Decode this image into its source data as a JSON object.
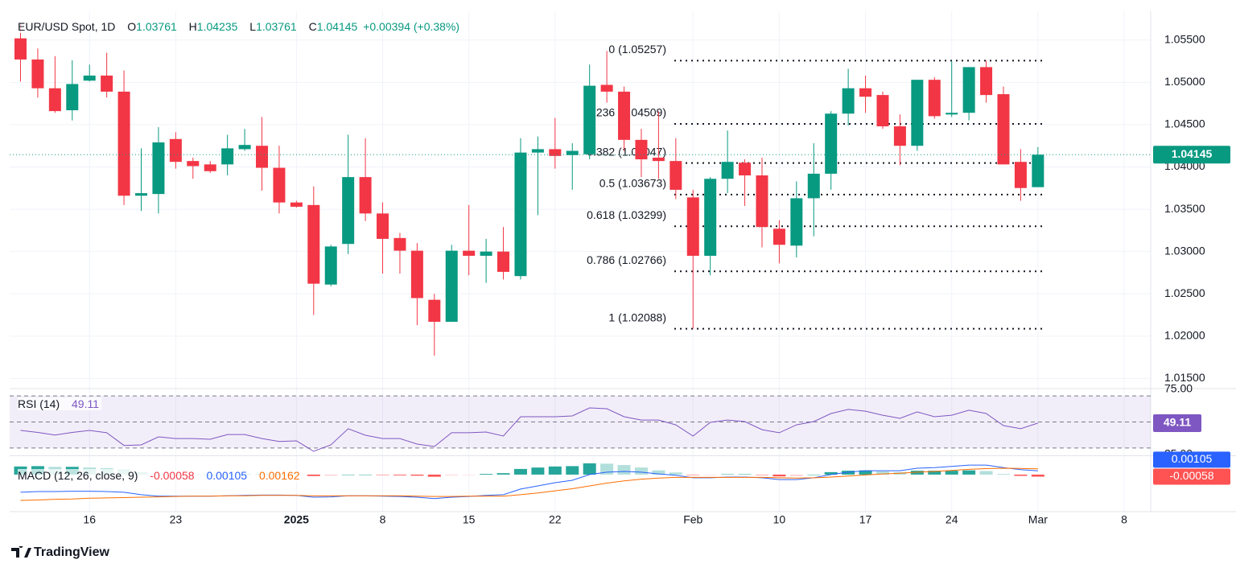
{
  "chart_data": {
    "type": "candlestick",
    "symbol": "EUR/USD Spot, 1D",
    "ohlc_prefixes": [
      "O",
      "H",
      "L",
      "C"
    ],
    "change": "+0.00394 (+0.38%)",
    "brand": "TradingView",
    "up_color": "#089981",
    "down_color": "#f23645",
    "categories": [
      null,
      null,
      null,
      null,
      null,
      null,
      null,
      null,
      null,
      null,
      null,
      null,
      null,
      null,
      null,
      null,
      null,
      null,
      null,
      null,
      null,
      null,
      null,
      null,
      null,
      null,
      null,
      null,
      null,
      null,
      null,
      null,
      null,
      null,
      null,
      null,
      null,
      null,
      null,
      null,
      null,
      null,
      null,
      null,
      null,
      null,
      null,
      null,
      null,
      null,
      null,
      null,
      null,
      null,
      null,
      null,
      null,
      null,
      null,
      null
    ],
    "open": [
      1.0552,
      1.0527,
      1.0493,
      1.0467,
      1.0502,
      1.0508,
      1.0489,
      1.0366,
      1.0368,
      1.0433,
      1.0407,
      1.0403,
      1.0403,
      1.0421,
      1.0425,
      1.0399,
      1.0358,
      1.0355,
      1.0261,
      1.0309,
      1.0388,
      1.0345,
      1.0316,
      1.0301,
      1.0243,
      1.0217,
      1.0301,
      1.0295,
      1.03,
      1.0271,
      1.0417,
      1.0421,
      1.0414,
      1.0415,
      1.0497,
      1.0489,
      1.0432,
      1.0411,
      1.0407,
      1.0364,
      1.0295,
      1.0386,
      1.0405,
      1.039,
      1.0327,
      1.0307,
      1.0363,
      1.0392,
      1.0463,
      1.0493,
      1.0485,
      1.0448,
      1.0425,
      1.0503,
      1.0462,
      1.0464,
      1.0518,
      1.0486,
      1.0406,
      1.03761
    ],
    "high": [
      1.0569,
      1.054,
      1.0531,
      1.0526,
      1.0521,
      1.0535,
      1.0514,
      1.0422,
      1.0447,
      1.0441,
      1.0411,
      1.0407,
      1.0438,
      1.0445,
      1.0459,
      1.0425,
      1.036,
      1.0377,
      1.0308,
      1.0438,
      1.0434,
      1.0358,
      1.0322,
      1.031,
      1.025,
      1.0308,
      1.0355,
      1.0315,
      1.0329,
      1.0434,
      1.0436,
      1.0458,
      1.0428,
      1.0521,
      1.0537,
      1.0495,
      1.0445,
      1.0466,
      1.0434,
      1.0373,
      1.0388,
      1.0443,
      1.0409,
      1.0411,
      1.0337,
      1.0383,
      1.0428,
      1.0466,
      1.0516,
      1.0508,
      1.0489,
      1.0462,
      1.0503,
      1.0506,
      1.0525,
      1.0518,
      1.05257,
      1.0495,
      1.0421,
      1.04235
    ],
    "low": [
      1.0501,
      1.0482,
      1.0464,
      1.0455,
      1.0501,
      1.0482,
      1.0355,
      1.0348,
      1.0345,
      1.0398,
      1.0386,
      1.0393,
      1.039,
      1.0419,
      1.0372,
      1.0345,
      1.0352,
      1.0225,
      1.0259,
      1.0297,
      1.0336,
      1.0274,
      1.0274,
      1.0213,
      1.0177,
      1.0217,
      1.0272,
      1.0263,
      1.0267,
      1.0267,
      1.0343,
      1.0398,
      1.0373,
      1.0409,
      1.0476,
      1.0419,
      1.0388,
      1.0386,
      1.0362,
      1.02088,
      1.0272,
      1.0369,
      1.0354,
      1.0305,
      1.0286,
      1.0293,
      1.0318,
      1.0373,
      1.0449,
      1.0464,
      1.0445,
      1.0402,
      1.0419,
      1.0457,
      1.0459,
      1.0455,
      1.0476,
      1.0403,
      1.036,
      1.03761
    ],
    "close": [
      1.0527,
      1.0493,
      1.0466,
      1.0498,
      1.0508,
      1.0489,
      1.0366,
      1.0369,
      1.0429,
      1.0406,
      1.0401,
      1.0395,
      1.0422,
      1.0426,
      1.0399,
      1.0358,
      1.0353,
      1.0262,
      1.0306,
      1.0388,
      1.0345,
      1.0315,
      1.0301,
      1.0245,
      1.0217,
      1.0301,
      1.0295,
      1.03,
      1.0276,
      1.0417,
      1.0421,
      1.0413,
      1.0419,
      1.0496,
      1.0489,
      1.0432,
      1.0409,
      1.0407,
      1.0373,
      1.0295,
      1.0386,
      1.0406,
      1.039,
      1.0329,
      1.0308,
      1.0363,
      1.0392,
      1.0463,
      1.0493,
      1.0483,
      1.0448,
      1.0425,
      1.0503,
      1.046,
      1.0464,
      1.0518,
      1.0485,
      1.0403,
      1.03751,
      1.04145
    ],
    "xlim": [
      -0.63,
      65.54
    ],
    "xticks": [
      {
        "value": 4,
        "label": "16"
      },
      {
        "value": 9,
        "label": "23"
      },
      {
        "value": 16,
        "label": "2025"
      },
      {
        "value": 21,
        "label": "8"
      },
      {
        "value": 26,
        "label": "15"
      },
      {
        "value": 31,
        "label": "22"
      },
      {
        "value": 39,
        "label": "Feb"
      },
      {
        "value": 44,
        "label": "10"
      },
      {
        "value": 49,
        "label": "17"
      },
      {
        "value": 54,
        "label": "24"
      },
      {
        "value": 59,
        "label": "Mar"
      },
      {
        "value": 64,
        "label": "8"
      }
    ],
    "ylim": [
      1.0139,
      1.0584
    ],
    "yticks": [
      {
        "value": 1.015,
        "label": "1.01500"
      },
      {
        "value": 1.02,
        "label": "1.02000"
      },
      {
        "value": 1.025,
        "label": "1.02500"
      },
      {
        "value": 1.03,
        "label": "1.03000"
      },
      {
        "value": 1.035,
        "label": "1.03500"
      },
      {
        "value": 1.04,
        "label": "1.04000"
      },
      {
        "value": 1.045,
        "label": "1.04500"
      },
      {
        "value": 1.05,
        "label": "1.05000"
      },
      {
        "value": 1.055,
        "label": "1.05500"
      }
    ],
    "grid": true,
    "fib": {
      "color": "#131722",
      "levels": [
        {
          "value": 1.05257,
          "label": "0 (1.05257)"
        },
        {
          "value": 1.04509,
          "label": "0.236 (1.04509)"
        },
        {
          "value": 1.04047,
          "label": "0.382 (1.04047)"
        },
        {
          "value": 1.03673,
          "label": "0.5 (1.03673)"
        },
        {
          "value": 1.03299,
          "label": "0.618 (1.03299)"
        },
        {
          "value": 1.02766,
          "label": "0.786 (1.02766)"
        },
        {
          "value": 1.02088,
          "label": "1 (1.02088)"
        }
      ]
    },
    "rsi": {
      "name": "RSI (14)",
      "color": "#7e57c2",
      "ylim": [
        25,
        75
      ],
      "yticks": [
        {
          "value": 75,
          "label": "75.00"
        },
        {
          "value": 25,
          "label": "25.00"
        }
      ],
      "bands": [
        70,
        50,
        30
      ],
      "values": [
        43.5,
        42,
        40,
        42,
        43.5,
        41.7,
        32,
        32.4,
        38.6,
        37.3,
        37.3,
        36.7,
        40.4,
        40.4,
        37.3,
        35,
        35.5,
        27.5,
        32.4,
        44.8,
        39.8,
        37.3,
        37.3,
        33,
        31.2,
        41.7,
        41.7,
        42.3,
        39.2,
        54,
        54,
        54,
        54.6,
        60.8,
        60.2,
        54,
        51.5,
        51.5,
        47.8,
        39.2,
        49.7,
        51.5,
        50.3,
        44.1,
        41.7,
        47.8,
        50.3,
        56.5,
        59.6,
        58.3,
        55.2,
        52.8,
        57.7,
        54,
        55.2,
        59,
        56.5,
        47.2,
        44.8,
        49.11
      ]
    },
    "macd": {
      "name": "MACD (12, 26, close, 9)",
      "ylim": [
        -0.0105,
        0.005
      ],
      "histogram_colors": [
        "#26a69a",
        "#b2dfdb",
        "#ffcdd2",
        "#ff5252"
      ],
      "histogram": [
        0.0023,
        0.0024,
        0.0022,
        0.0022,
        0.002,
        0.0018,
        0.0015,
        0.0007,
        0.0002,
        0.0001,
        0,
        0,
        0,
        0.0001,
        0.0001,
        0.0001,
        0,
        -0.0004,
        -0.0003,
        0,
        0,
        -0.0001,
        -0.0002,
        -0.0003,
        -0.0006,
        -0.0002,
        -0.0001,
        0.0002,
        0.0004,
        0.0016,
        0.002,
        0.0023,
        0.0024,
        0.0032,
        0.0031,
        0.0027,
        0.002,
        0.0012,
        0.0006,
        -0.0001,
        -0.0001,
        0.0001,
        0.0001,
        -0.0001,
        -0.0005,
        -0.0004,
        0,
        0.0007,
        0.0011,
        0.0012,
        0.0009,
        0.0007,
        0.0011,
        0.0011,
        0.0011,
        0.0012,
        0.001,
        0.0002,
        -0.00035,
        -0.00058
      ],
      "macd": {
        "color": "#2962ff",
        "values": [
          -0.005,
          -0.0048,
          -0.0048,
          -0.0047,
          -0.0047,
          -0.0048,
          -0.005,
          -0.0057,
          -0.0061,
          -0.0061,
          -0.0061,
          -0.0061,
          -0.006,
          -0.0059,
          -0.0058,
          -0.0058,
          -0.0059,
          -0.0064,
          -0.0063,
          -0.006,
          -0.006,
          -0.0061,
          -0.0062,
          -0.0064,
          -0.0068,
          -0.0064,
          -0.0062,
          -0.0059,
          -0.0057,
          -0.0041,
          -0.0032,
          -0.0023,
          -0.0016,
          0,
          0.0007,
          0.0009,
          0.0007,
          0.0002,
          -0.0002,
          -0.0009,
          -0.0009,
          -0.0007,
          -0.0007,
          -0.0009,
          -0.0014,
          -0.0014,
          -0.0009,
          0,
          0.0007,
          0.0011,
          0.0011,
          0.0011,
          0.0018,
          0.002,
          0.0023,
          0.0027,
          0.0027,
          0.002,
          0.0014,
          0.00105
        ]
      },
      "signal": {
        "color": "#ff6d00",
        "values": [
          -0.0073,
          -0.0072,
          -0.007,
          -0.0069,
          -0.0067,
          -0.0066,
          -0.0065,
          -0.0064,
          -0.0063,
          -0.0062,
          -0.0061,
          -0.0061,
          -0.006,
          -0.006,
          -0.0059,
          -0.0059,
          -0.0059,
          -0.006,
          -0.006,
          -0.006,
          -0.006,
          -0.006,
          -0.006,
          -0.0061,
          -0.0062,
          -0.0062,
          -0.0061,
          -0.0061,
          -0.0061,
          -0.0057,
          -0.0052,
          -0.0046,
          -0.004,
          -0.0032,
          -0.0024,
          -0.0018,
          -0.0013,
          -0.001,
          -0.0008,
          -0.0008,
          -0.0008,
          -0.0008,
          -0.0008,
          -0.0008,
          -0.0009,
          -0.001,
          -0.0009,
          -0.0007,
          -0.0004,
          -0.0001,
          0.0002,
          0.0004,
          0.0007,
          0.0009,
          0.0012,
          0.0015,
          0.0017,
          0.0018,
          0.00175,
          0.00162
        ]
      }
    }
  }
}
